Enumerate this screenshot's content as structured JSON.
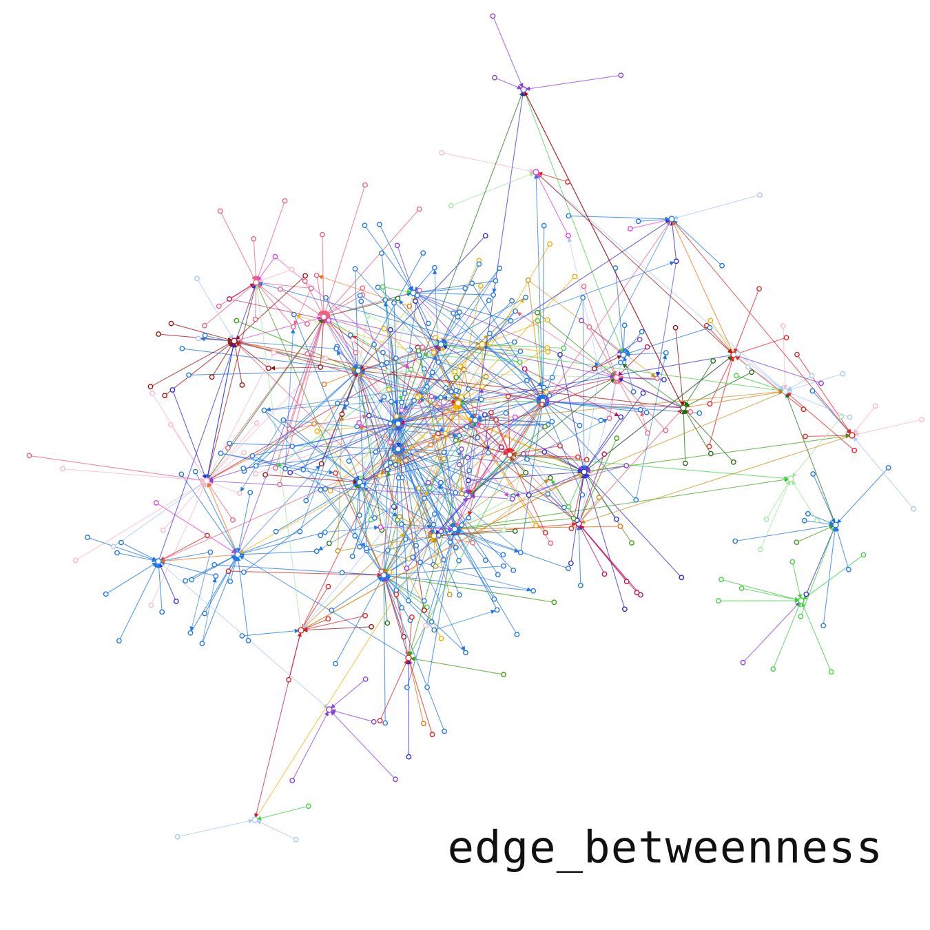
{
  "caption": "edge_betweenness",
  "palette": {
    "blue": "#1f77e8",
    "navy": "#2b2bd6",
    "light-blue": "#a8c8f5",
    "red": "#e8231f",
    "dark-red": "#a01010",
    "pink": "#f06080",
    "light-pink": "#f8b8c8",
    "crimson": "#c0105a",
    "magenta": "#e040e0",
    "purple": "#8a40e0",
    "orange": "#f07010",
    "amber": "#f0b000",
    "gold": "#c89010",
    "green": "#3aa010",
    "dark-green": "#207010",
    "light-green": "#a0e8a0",
    "lime": "#40d040"
  },
  "graph": {
    "node_count": 640,
    "community_colors": [
      "blue",
      "navy",
      "light-blue",
      "red",
      "dark-red",
      "pink",
      "light-pink",
      "crimson",
      "magenta",
      "purple",
      "orange",
      "amber",
      "gold",
      "green",
      "dark-green",
      "light-green",
      "lime"
    ],
    "directed": true
  }
}
